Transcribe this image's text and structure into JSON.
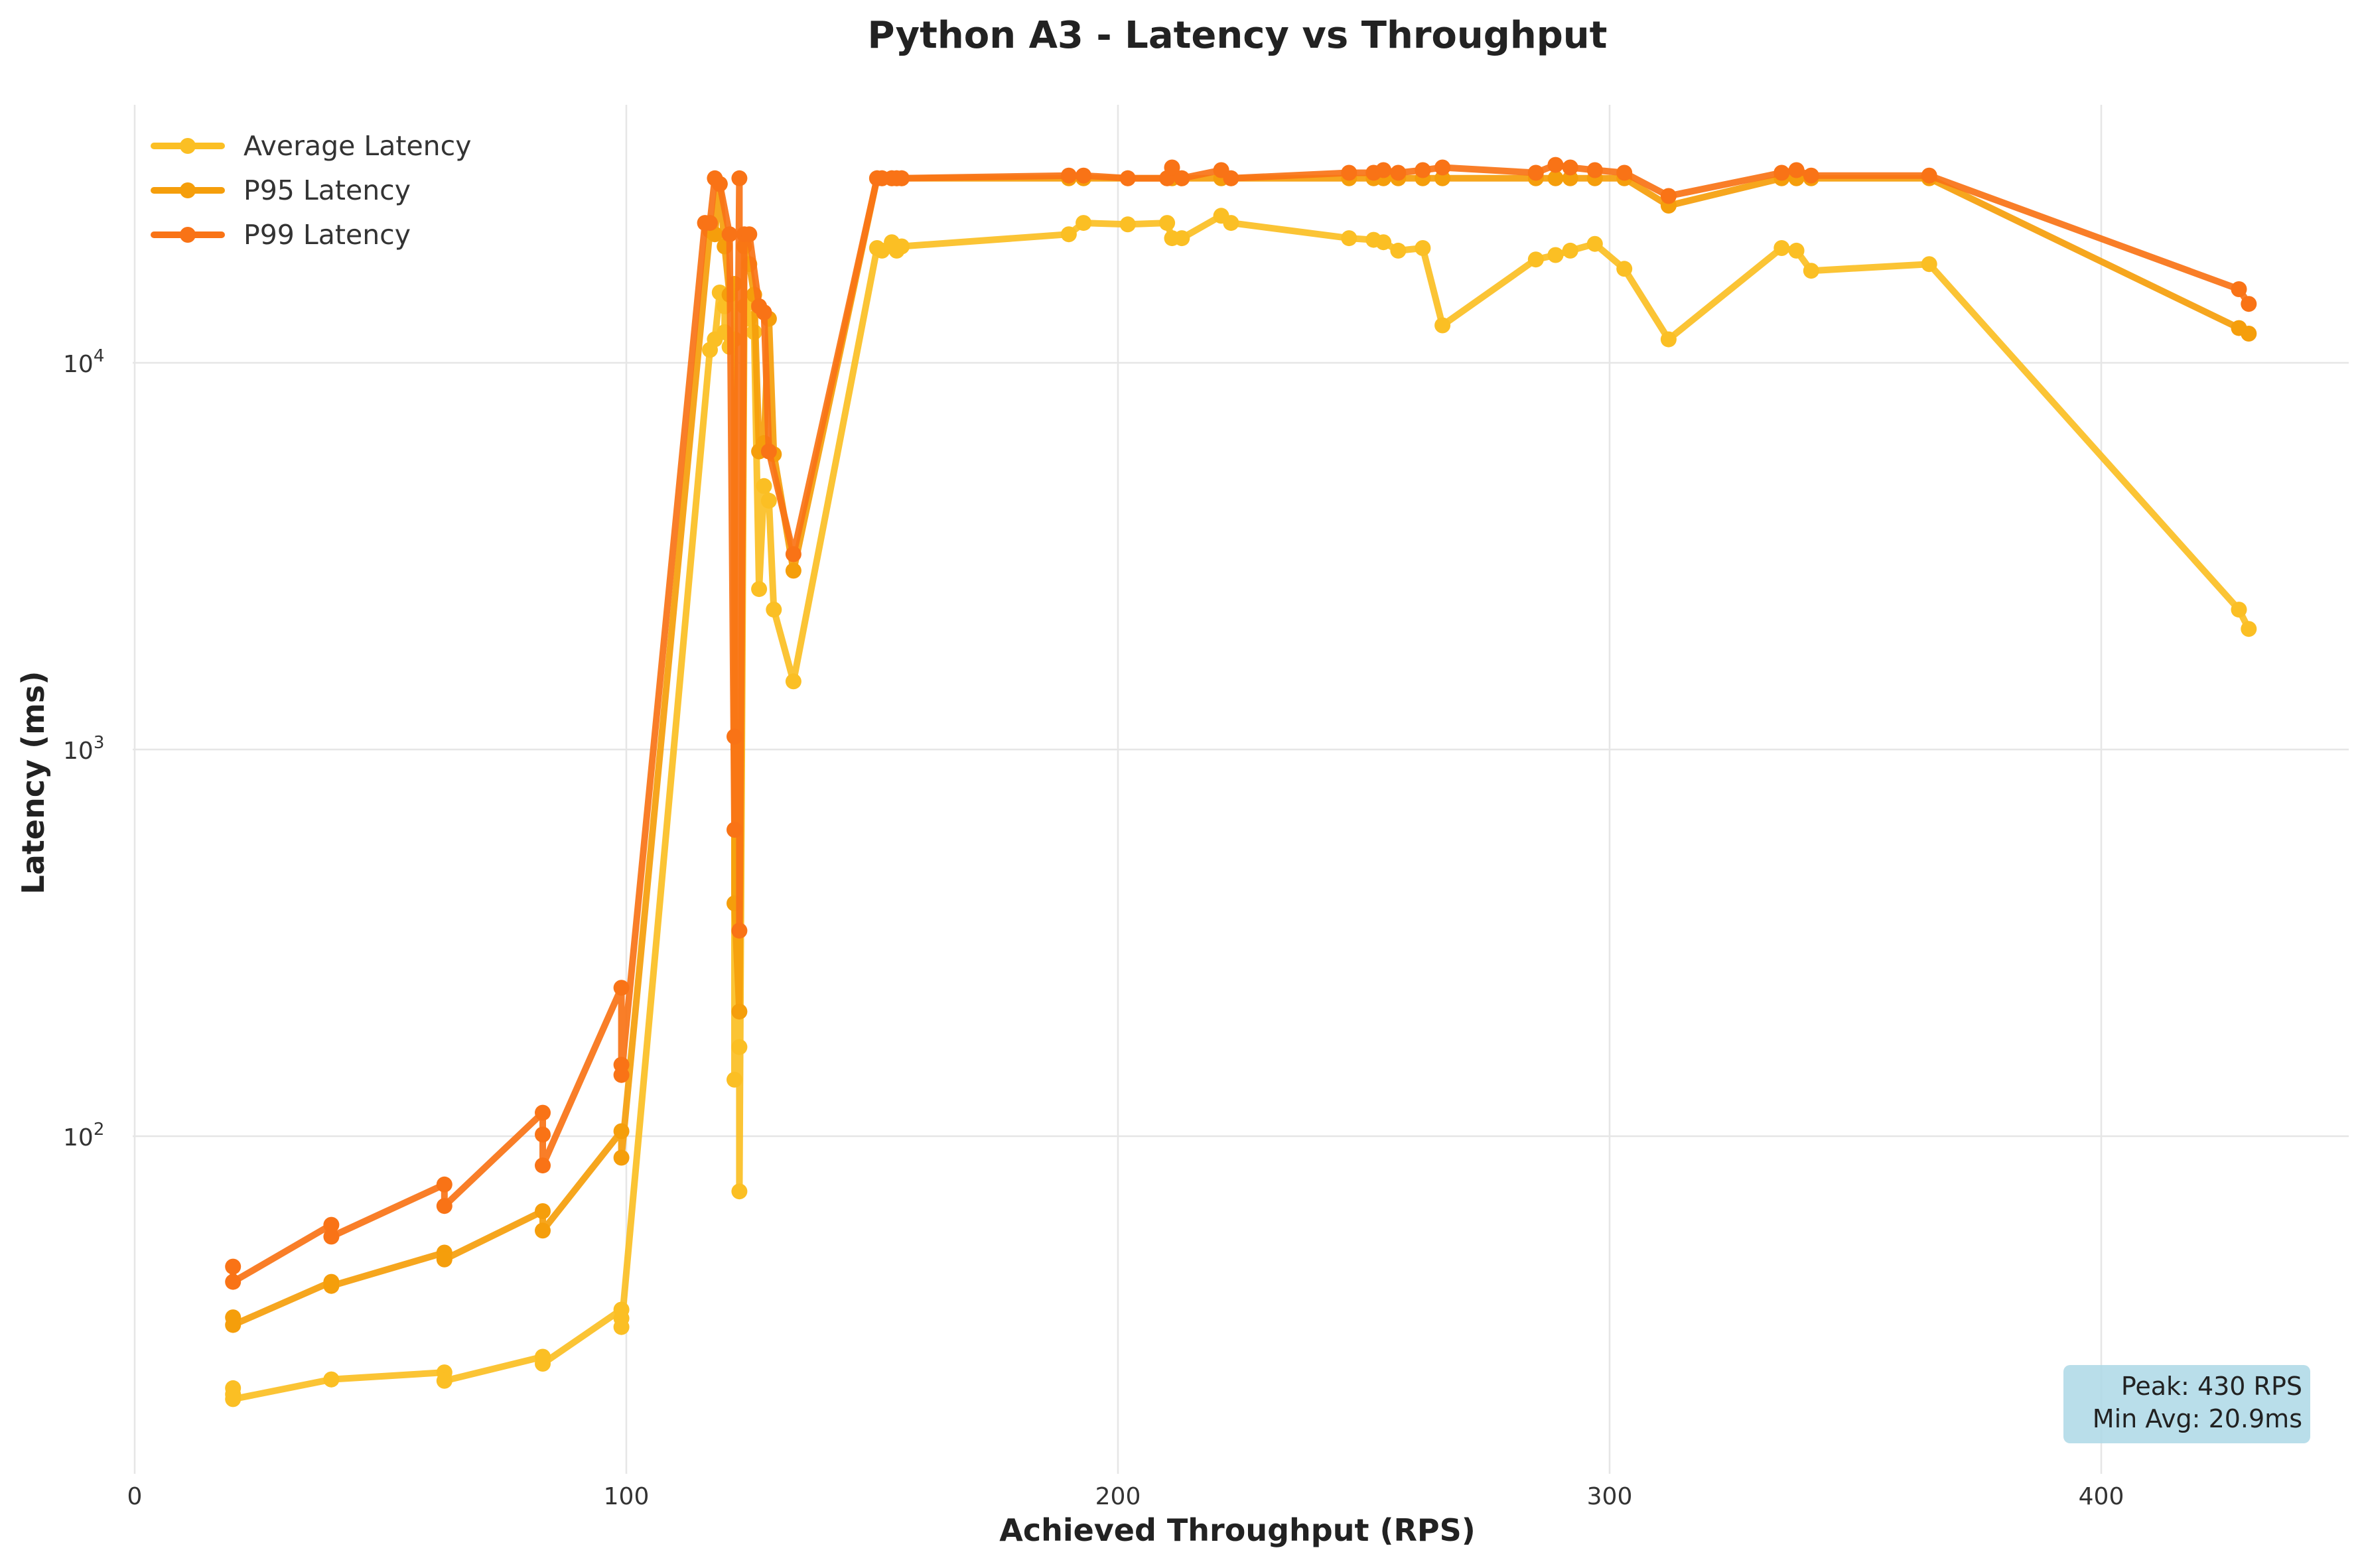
{
  "chart_data": {
    "type": "line",
    "title": "Python A3 - Latency vs Throughput",
    "xlabel": "Achieved Throughput (RPS)",
    "ylabel": "Latency (ms)",
    "xlim": [
      0,
      450
    ],
    "ylim": [
      15,
      45000
    ],
    "yscale": "log",
    "grid": true,
    "legend_position": "top-left",
    "x_ticks": [
      {
        "value": 0,
        "label": "0"
      },
      {
        "value": 100,
        "label": "100"
      },
      {
        "value": 200,
        "label": "200"
      },
      {
        "value": 300,
        "label": "300"
      },
      {
        "value": 400,
        "label": "400"
      }
    ],
    "y_ticks": [
      {
        "value": 100,
        "base": "10",
        "exp": "2"
      },
      {
        "value": 1000,
        "base": "10",
        "exp": "3"
      },
      {
        "value": 10000,
        "base": "10",
        "exp": "4"
      }
    ],
    "annotation": {
      "lines": [
        "Peak: 430 RPS",
        "Min Avg: 20.9ms"
      ],
      "background": "#add8e6"
    },
    "series": [
      {
        "name": "Average Latency",
        "color": "#fbbf24",
        "points": [
          [
            20,
            22.3
          ],
          [
            20,
            21.5
          ],
          [
            20,
            20.9
          ],
          [
            40,
            23.5
          ],
          [
            40,
            23.5
          ],
          [
            63,
            24.5
          ],
          [
            63,
            23.3
          ],
          [
            83,
            26.9
          ],
          [
            83,
            25.8
          ],
          [
            99,
            35.6
          ],
          [
            99,
            33.8
          ],
          [
            99,
            32.1
          ],
          [
            117,
            10800
          ],
          [
            118,
            11500
          ],
          [
            119,
            15200
          ],
          [
            120,
            14000
          ],
          [
            120,
            12000
          ],
          [
            121,
            11000
          ],
          [
            122,
            11500
          ],
          [
            122,
            140
          ],
          [
            123,
            170
          ],
          [
            123,
            72
          ],
          [
            124,
            14000
          ],
          [
            125,
            13000
          ],
          [
            126,
            12000
          ],
          [
            127,
            2600
          ],
          [
            128,
            4800
          ],
          [
            129,
            4400
          ],
          [
            130,
            2300
          ],
          [
            134,
            1500
          ],
          [
            151,
            19800
          ],
          [
            152,
            19500
          ],
          [
            154,
            20500
          ],
          [
            155,
            19500
          ],
          [
            156,
            20000
          ],
          [
            190,
            21500
          ],
          [
            193,
            23000
          ],
          [
            202,
            22800
          ],
          [
            210,
            23000
          ],
          [
            211,
            21000
          ],
          [
            213,
            21000
          ],
          [
            221,
            24000
          ],
          [
            223,
            23000
          ],
          [
            247,
            21000
          ],
          [
            252,
            20800
          ],
          [
            254,
            20500
          ],
          [
            257,
            19500
          ],
          [
            262,
            19800
          ],
          [
            266,
            12500
          ],
          [
            285,
            18500
          ],
          [
            289,
            19000
          ],
          [
            292,
            19500
          ],
          [
            297,
            20300
          ],
          [
            303,
            17500
          ],
          [
            312,
            11500
          ],
          [
            335,
            19800
          ],
          [
            338,
            19500
          ],
          [
            341,
            17300
          ],
          [
            365,
            18000
          ],
          [
            428,
            2300
          ],
          [
            430,
            2050
          ]
        ]
      },
      {
        "name": "P95 Latency",
        "color": "#f59e0b",
        "points": [
          [
            20,
            34
          ],
          [
            20,
            32.5
          ],
          [
            40,
            42
          ],
          [
            40,
            41
          ],
          [
            63,
            50
          ],
          [
            63,
            48
          ],
          [
            83,
            64
          ],
          [
            83,
            57
          ],
          [
            99,
            103
          ],
          [
            99,
            88
          ],
          [
            117,
            22000
          ],
          [
            118,
            21500
          ],
          [
            119,
            29000
          ],
          [
            120,
            20000
          ],
          [
            121,
            15000
          ],
          [
            122,
            16000
          ],
          [
            122,
            400
          ],
          [
            123,
            210
          ],
          [
            124,
            20000
          ],
          [
            125,
            18000
          ],
          [
            126,
            15000
          ],
          [
            127,
            5900
          ],
          [
            128,
            6200
          ],
          [
            129,
            13000
          ],
          [
            130,
            5800
          ],
          [
            134,
            2900
          ],
          [
            151,
            30000
          ],
          [
            152,
            30000
          ],
          [
            154,
            30000
          ],
          [
            155,
            30000
          ],
          [
            156,
            30000
          ],
          [
            190,
            30000
          ],
          [
            193,
            30000
          ],
          [
            202,
            30000
          ],
          [
            210,
            30000
          ],
          [
            211,
            30000
          ],
          [
            213,
            30000
          ],
          [
            221,
            30000
          ],
          [
            223,
            30000
          ],
          [
            247,
            30000
          ],
          [
            252,
            30000
          ],
          [
            254,
            30000
          ],
          [
            257,
            30000
          ],
          [
            262,
            30000
          ],
          [
            266,
            30000
          ],
          [
            285,
            30000
          ],
          [
            289,
            30000
          ],
          [
            292,
            30000
          ],
          [
            297,
            30000
          ],
          [
            303,
            30000
          ],
          [
            312,
            25500
          ],
          [
            335,
            30000
          ],
          [
            338,
            30000
          ],
          [
            341,
            30000
          ],
          [
            365,
            30000
          ],
          [
            428,
            12300
          ],
          [
            430,
            11900
          ]
        ]
      },
      {
        "name": "P99 Latency",
        "color": "#f97316",
        "points": [
          [
            20,
            46
          ],
          [
            20,
            42
          ],
          [
            40,
            59
          ],
          [
            40,
            55
          ],
          [
            63,
            75
          ],
          [
            63,
            66
          ],
          [
            83,
            115
          ],
          [
            83,
            101
          ],
          [
            83,
            84
          ],
          [
            99,
            242
          ],
          [
            99,
            153
          ],
          [
            99,
            144
          ],
          [
            116,
            23000
          ],
          [
            117,
            23000
          ],
          [
            118,
            30000
          ],
          [
            119,
            29000
          ],
          [
            121,
            21500
          ],
          [
            122,
            620
          ],
          [
            122,
            1080
          ],
          [
            123,
            30000
          ],
          [
            123,
            340
          ],
          [
            124,
            21500
          ],
          [
            125,
            21500
          ],
          [
            127,
            14000
          ],
          [
            128,
            13500
          ],
          [
            129,
            5900
          ],
          [
            134,
            3200
          ],
          [
            151,
            30000
          ],
          [
            152,
            30000
          ],
          [
            154,
            30000
          ],
          [
            155,
            30000
          ],
          [
            156,
            30000
          ],
          [
            190,
            30500
          ],
          [
            193,
            30500
          ],
          [
            202,
            30000
          ],
          [
            210,
            30000
          ],
          [
            211,
            32000
          ],
          [
            213,
            30000
          ],
          [
            221,
            31500
          ],
          [
            223,
            30000
          ],
          [
            247,
            31000
          ],
          [
            252,
            31000
          ],
          [
            254,
            31500
          ],
          [
            257,
            31000
          ],
          [
            262,
            31500
          ],
          [
            266,
            32000
          ],
          [
            285,
            31000
          ],
          [
            289,
            32500
          ],
          [
            292,
            32000
          ],
          [
            297,
            31500
          ],
          [
            303,
            31000
          ],
          [
            312,
            27000
          ],
          [
            335,
            31000
          ],
          [
            338,
            31500
          ],
          [
            341,
            30500
          ],
          [
            365,
            30500
          ],
          [
            428,
            15500
          ],
          [
            430,
            14200
          ]
        ]
      }
    ]
  }
}
